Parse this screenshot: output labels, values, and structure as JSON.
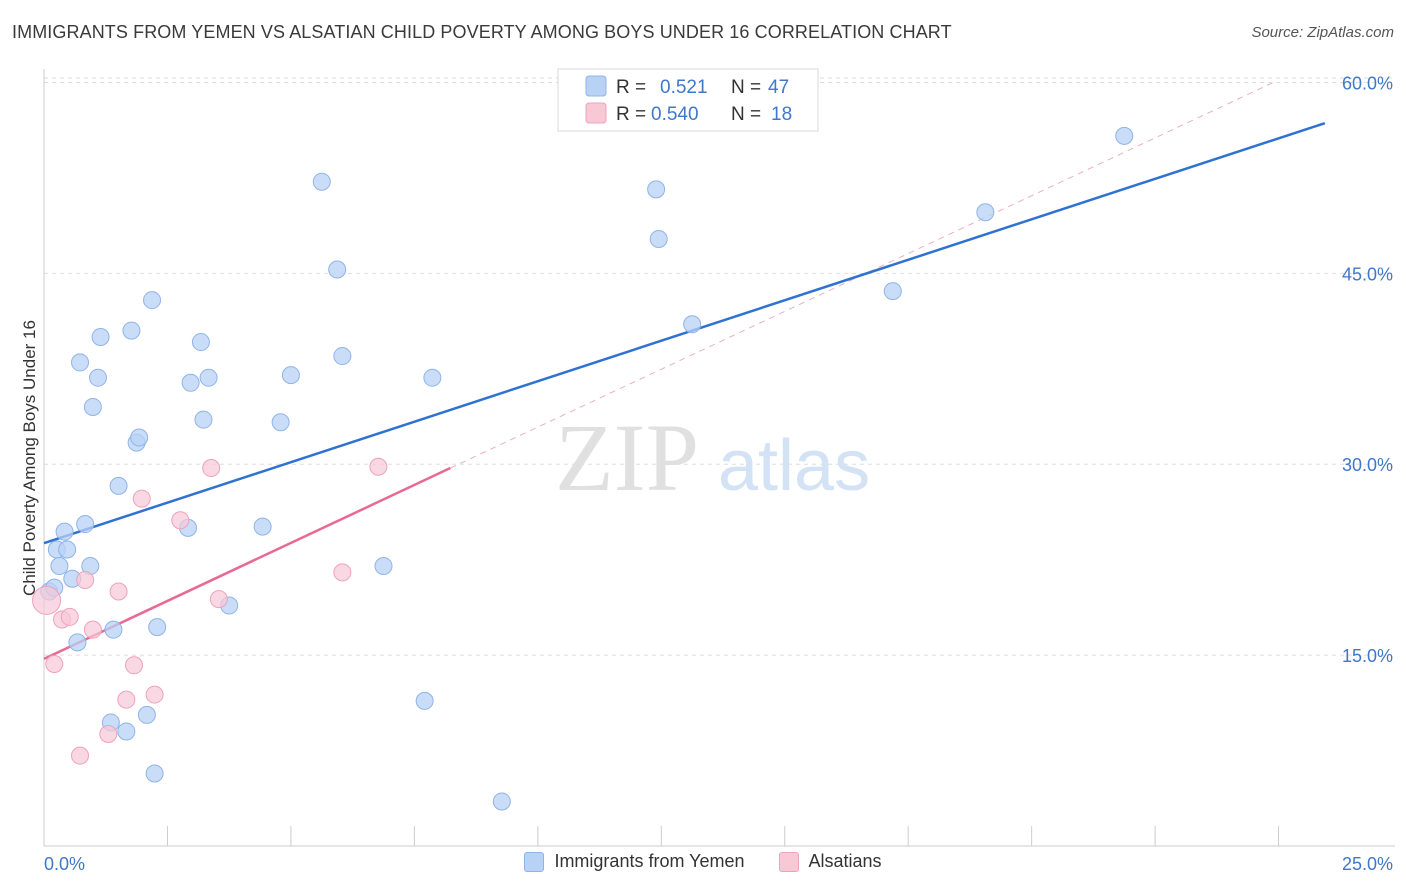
{
  "header": {
    "title": "IMMIGRANTS FROM YEMEN VS ALSATIAN CHILD POVERTY AMONG BOYS UNDER 16 CORRELATION CHART",
    "source": "Source: ZipAtlas.com"
  },
  "watermark": {
    "zip": "ZIP",
    "atlas": "atlas"
  },
  "colors": {
    "blue_fill": "#b8d2f5",
    "blue_stroke": "#8fb4e6",
    "blue_line": "#2f72d0",
    "pink_fill": "#f8c8d7",
    "pink_stroke": "#eea2bb",
    "pink_line": "#e86a94",
    "axis_text": "#3f78c9",
    "grid": "#dddddd"
  },
  "stats_legend": {
    "rows": [
      {
        "r_label": "R = ",
        "r_value": "0.521",
        "n_label": "N = ",
        "n_value": "47"
      },
      {
        "r_label": "R = ",
        "r_value": "0.540",
        "n_label": "N = ",
        "n_value": "18"
      }
    ]
  },
  "chart_data": {
    "type": "scatter",
    "title": "IMMIGRANTS FROM YEMEN VS ALSATIAN CHILD POVERTY AMONG BOYS UNDER 16 CORRELATION CHART",
    "xlabel": "",
    "ylabel": "Child Poverty Among Boys Under 16",
    "xlim": [
      0,
      25
    ],
    "ylim": [
      0,
      62
    ],
    "x_tick_labels": [
      {
        "value": 0,
        "label": "0.0%"
      },
      {
        "value": 25,
        "label": "25.0%"
      }
    ],
    "y_tick_labels": [
      {
        "value": 15,
        "label": "15.0%"
      },
      {
        "value": 30,
        "label": "30.0%"
      },
      {
        "value": 45,
        "label": "45.0%"
      },
      {
        "value": 60,
        "label": "60.0%"
      }
    ],
    "y_gridlines": [
      15,
      30,
      45,
      60
    ],
    "x_minor_ticks": [
      2.4,
      4.8,
      7.2,
      9.6,
      12.0,
      14.4,
      16.8,
      19.2,
      21.6,
      24.0
    ],
    "legend_position": "bottom",
    "series": [
      {
        "name": "Immigrants from Yemen",
        "color": "blue",
        "points": [
          [
            0.1,
            20.0
          ],
          [
            0.2,
            20.3
          ],
          [
            0.25,
            23.3
          ],
          [
            0.3,
            22.0
          ],
          [
            0.4,
            24.7
          ],
          [
            0.45,
            23.3
          ],
          [
            0.55,
            21.0
          ],
          [
            0.65,
            16.0
          ],
          [
            0.7,
            38.0
          ],
          [
            0.8,
            25.3
          ],
          [
            0.9,
            22.0
          ],
          [
            0.95,
            34.5
          ],
          [
            1.05,
            36.8
          ],
          [
            1.1,
            40.0
          ],
          [
            1.3,
            9.7
          ],
          [
            1.35,
            17.0
          ],
          [
            1.45,
            28.3
          ],
          [
            1.6,
            9.0
          ],
          [
            1.7,
            40.5
          ],
          [
            1.8,
            31.7
          ],
          [
            1.85,
            32.1
          ],
          [
            2.0,
            10.3
          ],
          [
            2.1,
            42.9
          ],
          [
            2.15,
            5.7
          ],
          [
            2.2,
            17.2
          ],
          [
            2.8,
            25.0
          ],
          [
            2.85,
            36.4
          ],
          [
            3.05,
            39.6
          ],
          [
            3.1,
            33.5
          ],
          [
            3.2,
            36.8
          ],
          [
            3.6,
            18.9
          ],
          [
            4.25,
            25.1
          ],
          [
            4.6,
            33.3
          ],
          [
            4.8,
            37.0
          ],
          [
            5.4,
            52.2
          ],
          [
            5.7,
            45.3
          ],
          [
            5.8,
            38.5
          ],
          [
            6.6,
            22.0
          ],
          [
            7.4,
            11.4
          ],
          [
            7.55,
            36.8
          ],
          [
            8.9,
            3.5
          ],
          [
            11.9,
            51.6
          ],
          [
            11.95,
            47.7
          ],
          [
            12.6,
            41.0
          ],
          [
            16.5,
            43.6
          ],
          [
            18.3,
            49.8
          ],
          [
            21.0,
            55.8
          ]
        ],
        "trend": {
          "x": [
            0,
            24.9
          ],
          "y": [
            23.8,
            56.8
          ]
        }
      },
      {
        "name": "Alsatians",
        "color": "pink",
        "points": [
          [
            0.05,
            19.3
          ],
          [
            0.2,
            14.3
          ],
          [
            0.35,
            17.8
          ],
          [
            0.5,
            18.0
          ],
          [
            0.7,
            7.1
          ],
          [
            0.8,
            20.9
          ],
          [
            0.95,
            17.0
          ],
          [
            1.25,
            8.8
          ],
          [
            1.45,
            20.0
          ],
          [
            1.6,
            11.5
          ],
          [
            1.75,
            14.2
          ],
          [
            1.9,
            27.3
          ],
          [
            2.15,
            11.9
          ],
          [
            2.65,
            25.6
          ],
          [
            3.25,
            29.7
          ],
          [
            3.4,
            19.4
          ],
          [
            5.8,
            21.5
          ],
          [
            6.5,
            29.8
          ]
        ],
        "trend": {
          "x": [
            0,
            7.9
          ],
          "y": [
            14.7,
            29.7
          ]
        },
        "trend_extension": {
          "x": [
            7.9,
            23.9
          ],
          "y": [
            29.7,
            60.0
          ]
        }
      }
    ]
  }
}
